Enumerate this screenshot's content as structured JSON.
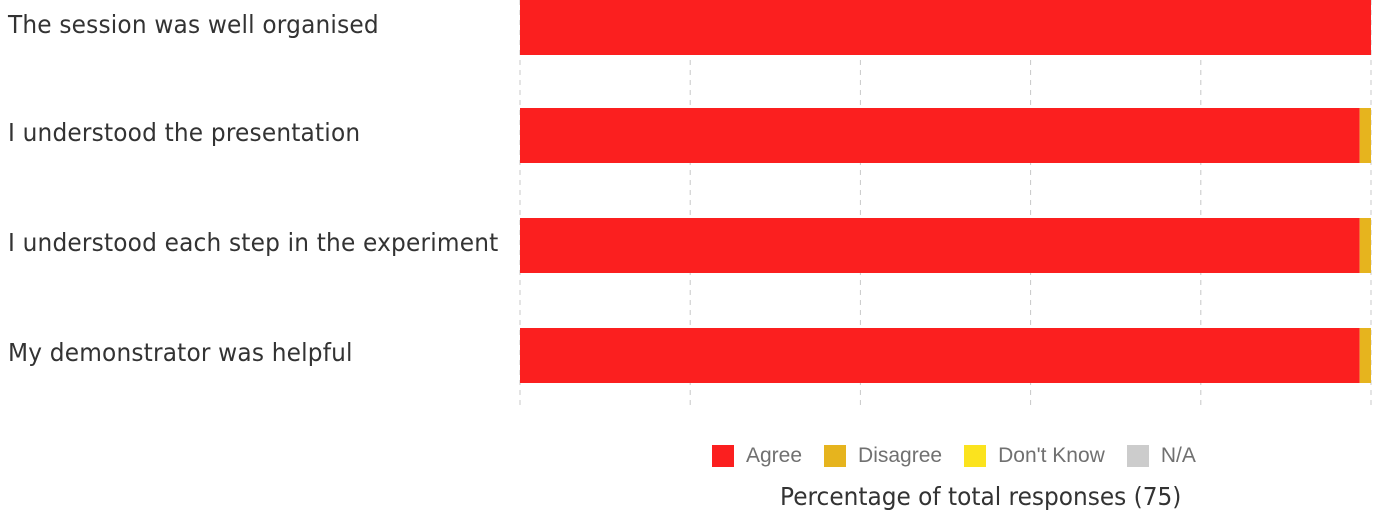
{
  "chart_data": {
    "type": "bar",
    "orientation": "horizontal",
    "stacked": true,
    "categories": [
      "The session was well organised",
      "I understood the presentation",
      "I understood each step in the experiment",
      "My demonstrator was helpful"
    ],
    "series": [
      {
        "name": "Agree",
        "color": "#fb1f1f",
        "values": [
          100,
          98.67,
          98.67,
          98.67
        ]
      },
      {
        "name": "Disagree",
        "color": "#e6b41e",
        "values": [
          0,
          1.33,
          1.33,
          1.33
        ]
      },
      {
        "name": "Don't Know",
        "color": "#fbe31e",
        "values": [
          0,
          0,
          0,
          0
        ]
      },
      {
        "name": "N/A",
        "color": "#cccccc",
        "values": [
          0,
          0,
          0,
          0
        ]
      }
    ],
    "xlabel": "Percentage of total responses (75)",
    "xlim": [
      0,
      100
    ],
    "grid": true,
    "legend_position": "bottom"
  }
}
